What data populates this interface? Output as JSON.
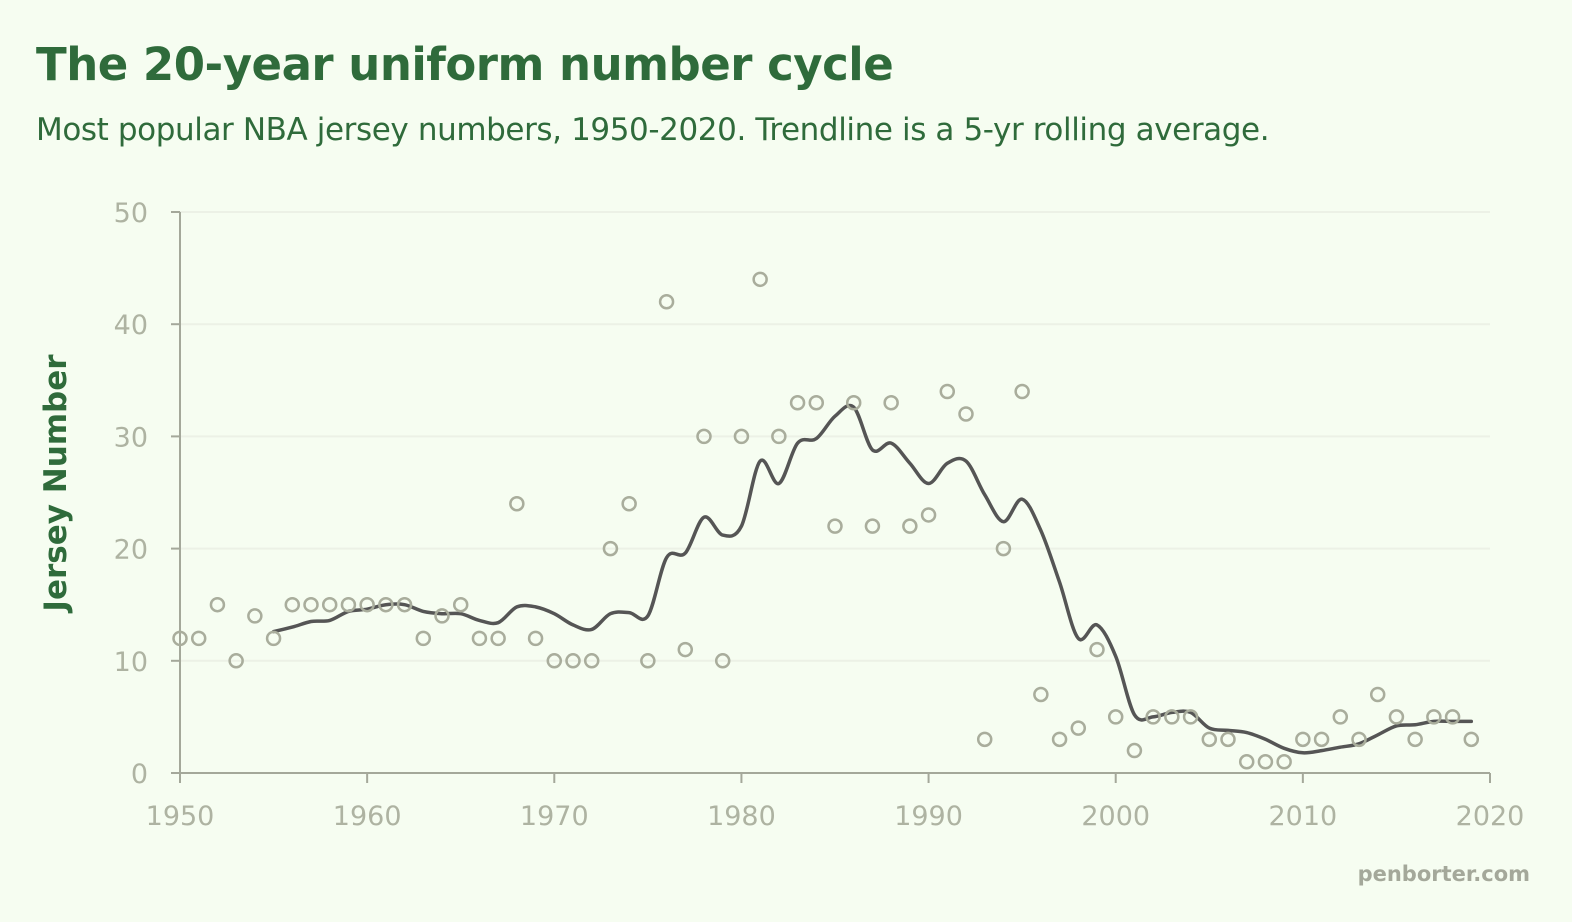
{
  "title": "The 20-year uniform number cycle",
  "subtitle": "Most popular NBA jersey numbers, 1950-2020. Trendline is a 5-yr rolling average.",
  "footer": "penborter.com",
  "colors": {
    "background": "#f6fdf1",
    "title": "#2f6b3b",
    "axis": "#a4a89a",
    "points": "#a9ad9c",
    "trendline": "#555555",
    "grid": "#ecf1e6"
  },
  "chart_data": {
    "type": "scatter",
    "title": "",
    "xlabel": "",
    "ylabel": "Jersey Number",
    "xlim": [
      1950,
      2020
    ],
    "ylim": [
      0,
      50
    ],
    "xticks": [
      1950,
      1960,
      1970,
      1980,
      1990,
      2000,
      2010,
      2020
    ],
    "yticks": [
      0,
      10,
      20,
      30,
      40,
      50
    ],
    "grid": "horizontal",
    "series": [
      {
        "kind": "scatter",
        "x": [
          1950,
          1951,
          1952,
          1953,
          1954,
          1955,
          1956,
          1957,
          1958,
          1959,
          1960,
          1961,
          1962,
          1963,
          1964,
          1965,
          1966,
          1967,
          1968,
          1969,
          1970,
          1971,
          1972,
          1973,
          1974,
          1975,
          1976,
          1977,
          1978,
          1979,
          1980,
          1981,
          1982,
          1983,
          1984,
          1985,
          1986,
          1987,
          1988,
          1989,
          1990,
          1991,
          1992,
          1993,
          1994,
          1995,
          1996,
          1997,
          1998,
          1999,
          2000,
          2001,
          2002,
          2003,
          2004,
          2005,
          2006,
          2007,
          2008,
          2009,
          2010,
          2011,
          2012,
          2013,
          2014,
          2015,
          2016,
          2017,
          2018,
          2019
        ],
        "y": [
          12,
          12,
          15,
          10,
          14,
          12,
          15,
          15,
          15,
          15,
          15,
          15,
          15,
          12,
          14,
          15,
          12,
          12,
          24,
          12,
          10,
          10,
          10,
          20,
          24,
          10,
          42,
          11,
          30,
          10,
          30,
          44,
          30,
          33,
          33,
          22,
          33,
          22,
          33,
          22,
          23,
          34,
          32,
          3,
          20,
          34,
          7,
          3,
          4,
          11,
          5,
          2,
          5,
          5,
          5,
          3,
          3,
          1,
          1,
          1,
          3,
          3,
          5,
          3,
          7,
          5,
          3,
          5,
          5,
          3
        ]
      },
      {
        "kind": "trendline",
        "x": [
          1955,
          1956,
          1957,
          1958,
          1959,
          1960,
          1961,
          1962,
          1963,
          1964,
          1965,
          1966,
          1967,
          1968,
          1969,
          1970,
          1971,
          1972,
          1973,
          1974,
          1975,
          1976,
          1977,
          1978,
          1979,
          1980,
          1981,
          1982,
          1983,
          1984,
          1985,
          1986,
          1987,
          1988,
          1989,
          1990,
          1991,
          1992,
          1993,
          1994,
          1995,
          1996,
          1997,
          1998,
          1999,
          2000,
          2001,
          2002,
          2003,
          2004,
          2005,
          2006,
          2007,
          2008,
          2009,
          2010,
          2011,
          2012,
          2013,
          2014,
          2015,
          2016,
          2017,
          2018,
          2019
        ],
        "y": [
          12.6,
          13.0,
          13.5,
          13.6,
          14.4,
          14.6,
          15.0,
          15.0,
          14.4,
          14.2,
          14.2,
          13.6,
          13.4,
          14.8,
          14.8,
          14.2,
          13.2,
          12.8,
          14.2,
          14.3,
          14.0,
          19.2,
          19.6,
          22.8,
          21.2,
          22.0,
          27.8,
          25.8,
          29.4,
          29.8,
          31.8,
          32.6,
          28.8,
          29.4,
          27.6,
          25.8,
          27.6,
          27.8,
          24.8,
          22.4,
          24.4,
          21.6,
          17.0,
          12.0,
          13.2,
          10.4,
          5.2,
          5.0,
          5.4,
          5.4,
          4.0,
          3.8,
          3.6,
          3.0,
          2.2,
          1.8,
          2.0,
          2.3,
          2.6,
          3.4,
          4.2,
          4.3,
          4.6,
          4.6,
          4.6
        ]
      }
    ]
  }
}
